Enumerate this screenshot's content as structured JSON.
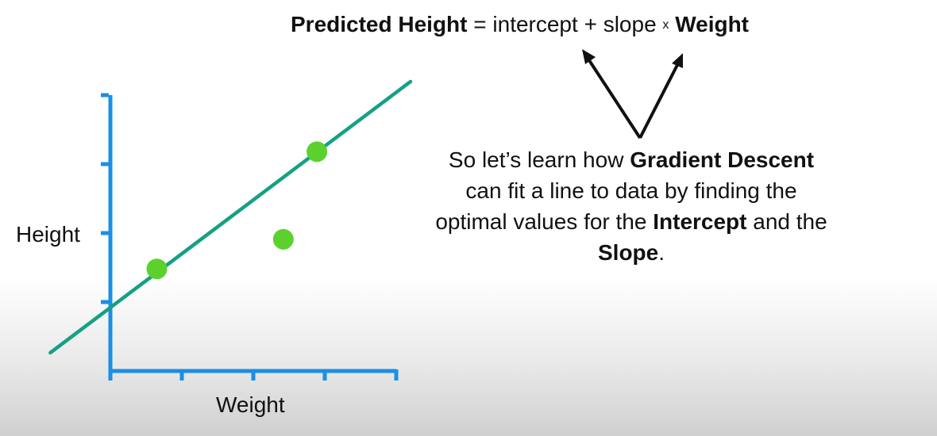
{
  "equation": {
    "lhs": "Predicted Height",
    "equals": " = intercept + slope ",
    "times": "x",
    "rhs": "Weight"
  },
  "caption": {
    "part1": "So let’s learn how ",
    "bold1": "Gradient Descent",
    "part2": " can fit a line to data by finding the optimal values for the ",
    "bold2": "Intercept",
    "part3": " and the ",
    "bold3": "Slope",
    "part4": "."
  },
  "colors": {
    "axis": "#1a8fe6",
    "line": "#16a085",
    "points": "#5cd12e",
    "arrow": "#111111"
  },
  "chart_data": {
    "type": "scatter",
    "xlabel": "Weight",
    "ylabel": "Height",
    "xlim": [
      0,
      4
    ],
    "ylim": [
      0,
      4
    ],
    "x_ticks": [
      1,
      2,
      3,
      4
    ],
    "y_ticks": [
      1,
      2,
      3,
      4
    ],
    "points": [
      {
        "x": 0.65,
        "y": 1.48
      },
      {
        "x": 2.42,
        "y": 1.91
      },
      {
        "x": 2.89,
        "y": 3.18
      }
    ],
    "fit_line": {
      "intercept": 0.92,
      "slope": 0.78,
      "x_range": [
        -0.84,
        4.2
      ]
    }
  }
}
